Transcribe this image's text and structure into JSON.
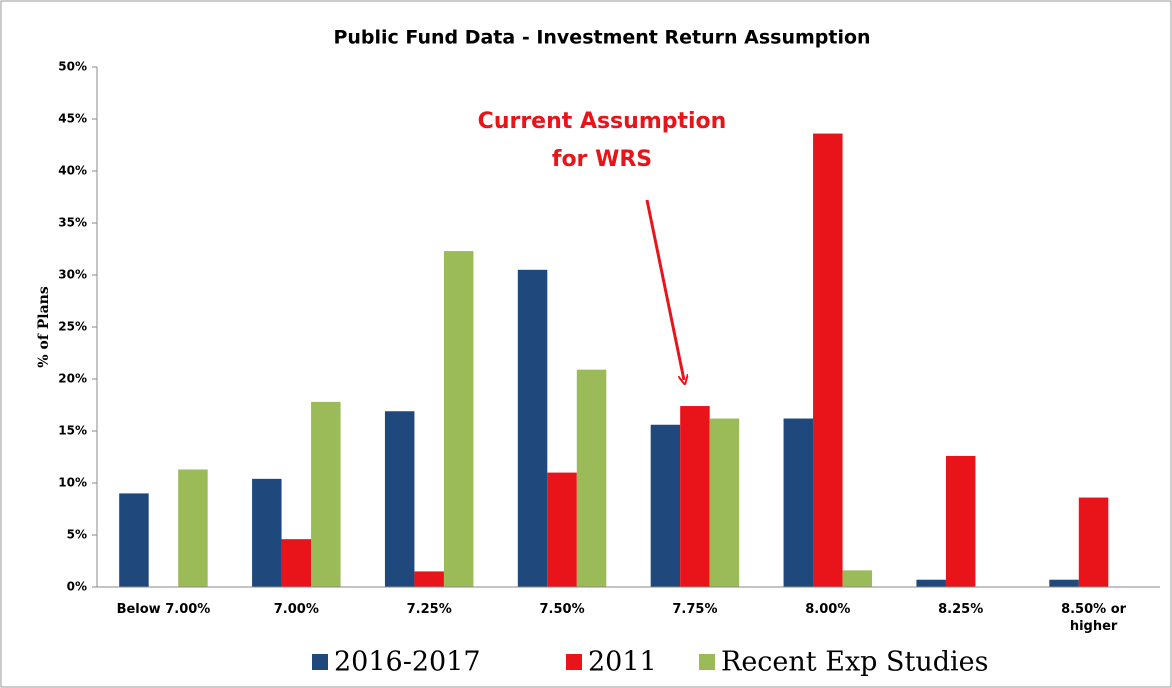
{
  "chart_data": {
    "type": "bar",
    "title": "Public Fund Data - Investment Return Assumption",
    "y_label": "% of Plans",
    "annotation": [
      "Current Assumption",
      "for WRS"
    ],
    "categories": [
      "Below 7.00%",
      "7.00%",
      "7.25%",
      "7.50%",
      "7.75%",
      "8.00%",
      "8.25%",
      "8.50% or higher"
    ],
    "series": [
      {
        "name": "2016-2017",
        "color": "#1f497d",
        "values": [
          9.0,
          10.4,
          16.9,
          30.5,
          15.6,
          16.2,
          0.7,
          0.7
        ]
      },
      {
        "name": "2011",
        "color": "#e8141a",
        "values": [
          0,
          4.6,
          1.5,
          11.0,
          17.4,
          43.6,
          12.6,
          8.6
        ]
      },
      {
        "name": "Recent Exp Studies",
        "color": "#9bbb59",
        "values": [
          11.3,
          17.8,
          32.3,
          20.9,
          16.2,
          1.6,
          0,
          0
        ]
      }
    ],
    "ylim": [
      0,
      50
    ],
    "yticks": [
      {
        "value": 0,
        "label": "0%"
      },
      {
        "value": 5,
        "label": "5%"
      },
      {
        "value": 10,
        "label": "10%"
      },
      {
        "value": 15,
        "label": "15%"
      },
      {
        "value": 20,
        "label": "20%"
      },
      {
        "value": 25,
        "label": "25%"
      },
      {
        "value": 30,
        "label": "30%"
      },
      {
        "value": 35,
        "label": "35%"
      },
      {
        "value": 40,
        "label": "40%"
      },
      {
        "value": 45,
        "label": "45%"
      },
      {
        "value": 50,
        "label": "50%"
      }
    ],
    "grid": false,
    "legend": "bottom"
  }
}
